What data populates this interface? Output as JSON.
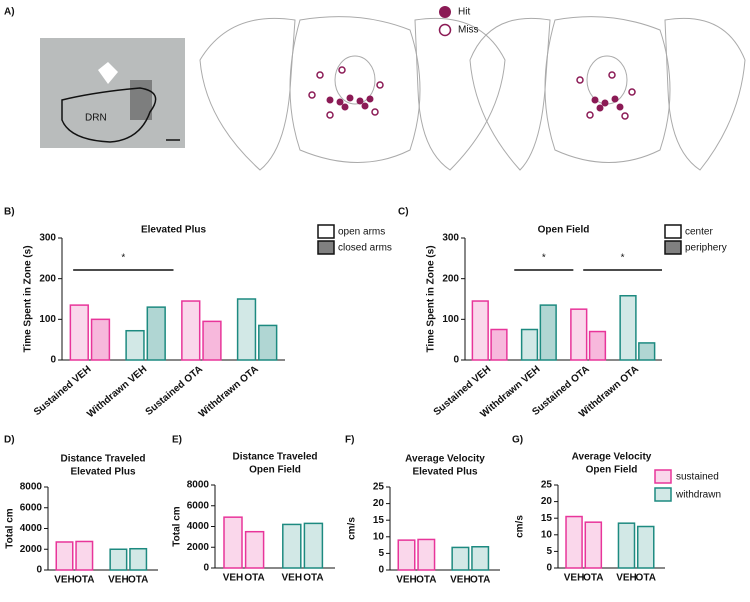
{
  "panel_a": {
    "panel": "A)",
    "image_label": "DRN",
    "legend": [
      {
        "name": "Hit",
        "color": "#8b1a55"
      },
      {
        "name": "Miss",
        "color": "#8b1a55"
      }
    ]
  },
  "legend_dg": [
    {
      "name": "sustained",
      "color": "#e8359a"
    },
    {
      "name": "withdrawn",
      "color": "#1d8a80"
    }
  ],
  "chart_data": [
    {
      "type": "bar",
      "panel": "B)",
      "title": [
        "Elevated Plus"
      ],
      "ylabel": "Time Spent in Zone (s)",
      "categories": [
        "Sustained VEH",
        "Withdrawn VEH",
        "Sustained OTA",
        "Withdrawn OTA"
      ],
      "category_colors": [
        "#e8359a",
        "#1d8a80",
        "#e8359a",
        "#1d8a80"
      ],
      "series": [
        {
          "name": "open arms",
          "color": "#ffffff",
          "values": [
            135,
            72,
            145,
            150
          ]
        },
        {
          "name": "closed arms",
          "color": "#808080",
          "values": [
            100,
            130,
            95,
            85
          ]
        }
      ],
      "ylim": [
        0,
        300
      ],
      "yticks": [
        0,
        100,
        200,
        300
      ],
      "annotations": [
        "*"
      ]
    },
    {
      "type": "bar",
      "panel": "C)",
      "title": [
        "Open Field"
      ],
      "ylabel": "Time Spent in Zone (s)",
      "categories": [
        "Sustained VEH",
        "Withdrawn VEH",
        "Sustained OTA",
        "Withdrawn OTA"
      ],
      "category_colors": [
        "#e8359a",
        "#1d8a80",
        "#e8359a",
        "#1d8a80"
      ],
      "series": [
        {
          "name": "center",
          "color": "#ffffff",
          "values": [
            145,
            75,
            125,
            158
          ]
        },
        {
          "name": "periphery",
          "color": "#808080",
          "values": [
            75,
            135,
            70,
            42
          ]
        }
      ],
      "ylim": [
        0,
        300
      ],
      "yticks": [
        0,
        100,
        200,
        300
      ],
      "annotations": [
        "*",
        "*"
      ]
    },
    {
      "type": "bar",
      "panel": "D)",
      "title": [
        "Distance Traveled",
        "Elevated Plus"
      ],
      "ylabel": "Total cm",
      "categories": [
        "VEH",
        "OTA",
        "VEH",
        "OTA"
      ],
      "colors": [
        "#e8359a",
        "#e8359a",
        "#1d8a80",
        "#1d8a80"
      ],
      "values": [
        2700,
        2750,
        2000,
        2050
      ],
      "ylim": [
        0,
        8000
      ],
      "yticks": [
        0,
        2000,
        4000,
        6000,
        8000
      ]
    },
    {
      "type": "bar",
      "panel": "E)",
      "title": [
        "Distance Traveled",
        "Open Field"
      ],
      "ylabel": "Total cm",
      "categories": [
        "VEH",
        "OTA",
        "VEH",
        "OTA"
      ],
      "colors": [
        "#e8359a",
        "#e8359a",
        "#1d8a80",
        "#1d8a80"
      ],
      "values": [
        4900,
        3500,
        4200,
        4300
      ],
      "ylim": [
        0,
        8000
      ],
      "yticks": [
        0,
        2000,
        4000,
        6000,
        8000
      ]
    },
    {
      "type": "bar",
      "panel": "F)",
      "title": [
        "Average Velocity",
        "Elevated Plus"
      ],
      "ylabel": "cm/s",
      "categories": [
        "VEH",
        "OTA",
        "VEH",
        "OTA"
      ],
      "colors": [
        "#e8359a",
        "#e8359a",
        "#1d8a80",
        "#1d8a80"
      ],
      "values": [
        9,
        9.2,
        6.8,
        7
      ],
      "ylim": [
        0,
        25
      ],
      "yticks": [
        0,
        5,
        10,
        15,
        20,
        25
      ]
    },
    {
      "type": "bar",
      "panel": "G)",
      "title": [
        "Average Velocity",
        "Open Field"
      ],
      "ylabel": "cm/s",
      "categories": [
        "VEH",
        "OTA",
        "VEH",
        "OTA"
      ],
      "colors": [
        "#e8359a",
        "#e8359a",
        "#1d8a80",
        "#1d8a80"
      ],
      "values": [
        15.5,
        13.8,
        13.5,
        12.5
      ],
      "ylim": [
        0,
        25
      ],
      "yticks": [
        0,
        5,
        10,
        15,
        20,
        25
      ]
    }
  ]
}
